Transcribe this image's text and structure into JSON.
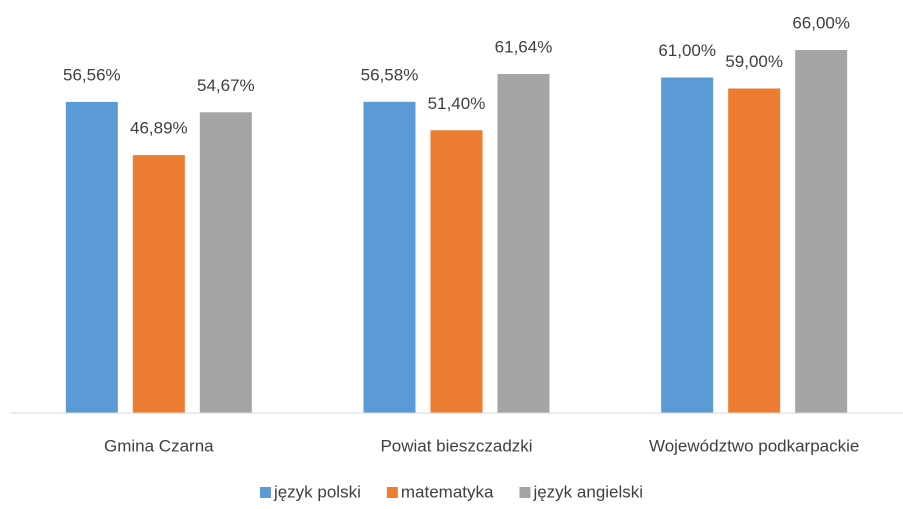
{
  "chart_data": {
    "type": "bar",
    "categories": [
      "Gmina Czarna",
      "Powiat bieszczadzki",
      "Województwo podkarpackie"
    ],
    "series": [
      {
        "name": "język polski",
        "color": "#5b9bd5",
        "values": [
          56.56,
          56.58,
          61.0
        ],
        "value_labels": [
          "56,56%",
          "56,58%",
          "61,00%"
        ]
      },
      {
        "name": "matematyka",
        "color": "#ed7d31",
        "values": [
          46.89,
          51.4,
          59.0
        ],
        "value_labels": [
          "46,89%",
          "51,40%",
          "59,00%"
        ]
      },
      {
        "name": "język angielski",
        "color": "#a5a5a5",
        "values": [
          54.67,
          61.64,
          66.0
        ],
        "value_labels": [
          "54,67%",
          "61,64%",
          "66,00%"
        ]
      }
    ],
    "ylim": [
      0,
      75
    ],
    "legend": "bottom"
  }
}
